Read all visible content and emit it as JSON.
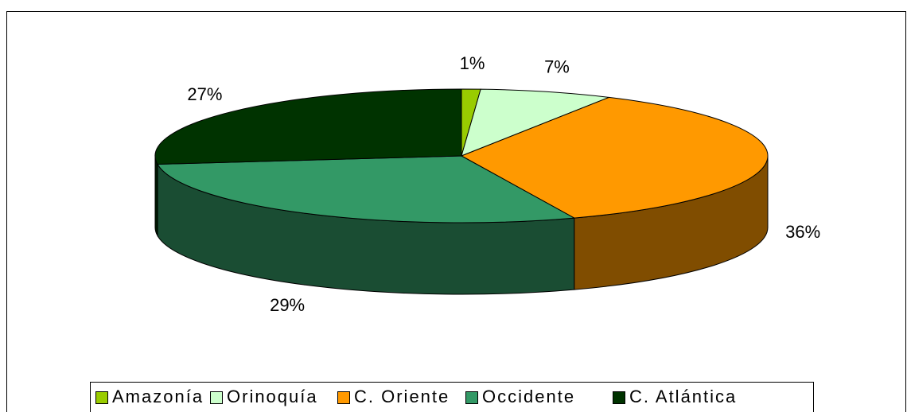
{
  "chart_data": {
    "type": "pie3d",
    "categories": [
      "Amazonía",
      "Orinoquía",
      "C. Oriente",
      "Occidente",
      "C. Atlántica"
    ],
    "values": [
      1,
      7,
      36,
      29,
      27
    ],
    "value_labels": [
      "1%",
      "7%",
      "36%",
      "29%",
      "27%"
    ],
    "colors": [
      "#99cc00",
      "#ccffcc",
      "#ff9900",
      "#339966",
      "#003300"
    ],
    "legend": "bottom"
  }
}
